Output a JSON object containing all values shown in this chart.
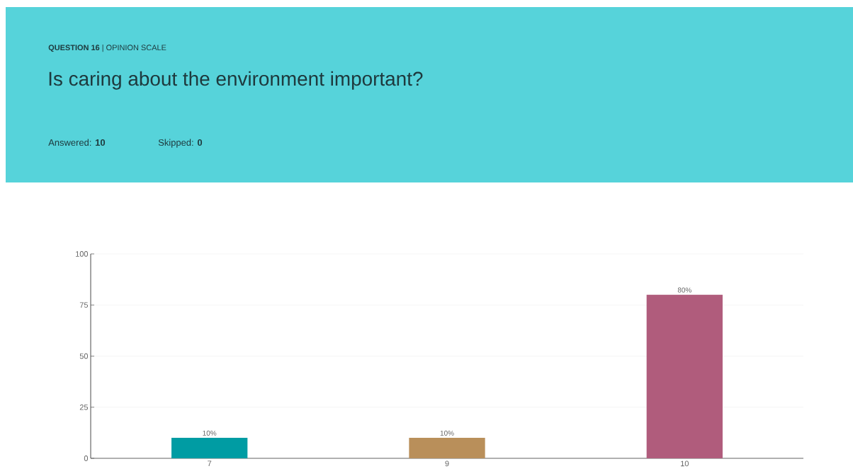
{
  "chart_data": {
    "type": "bar",
    "subtitle": "**QUESTION 16** | OPINION SCALE",
    "title": "Is caring about the environment important?",
    "annotations": [
      "Answered: **10**",
      "Skipped: **0**"
    ],
    "categories": [
      "7",
      "9",
      "10"
    ],
    "values": [
      10,
      10,
      80
    ],
    "colors": [
      "#009ca3",
      "#b98f5a",
      "#b05c7c"
    ],
    "value_labels": [
      "10%",
      "10%",
      "80%"
    ],
    "ylim": [
      0,
      100
    ],
    "yticks": [
      0,
      25,
      50,
      75,
      100
    ],
    "grid": "y"
  }
}
